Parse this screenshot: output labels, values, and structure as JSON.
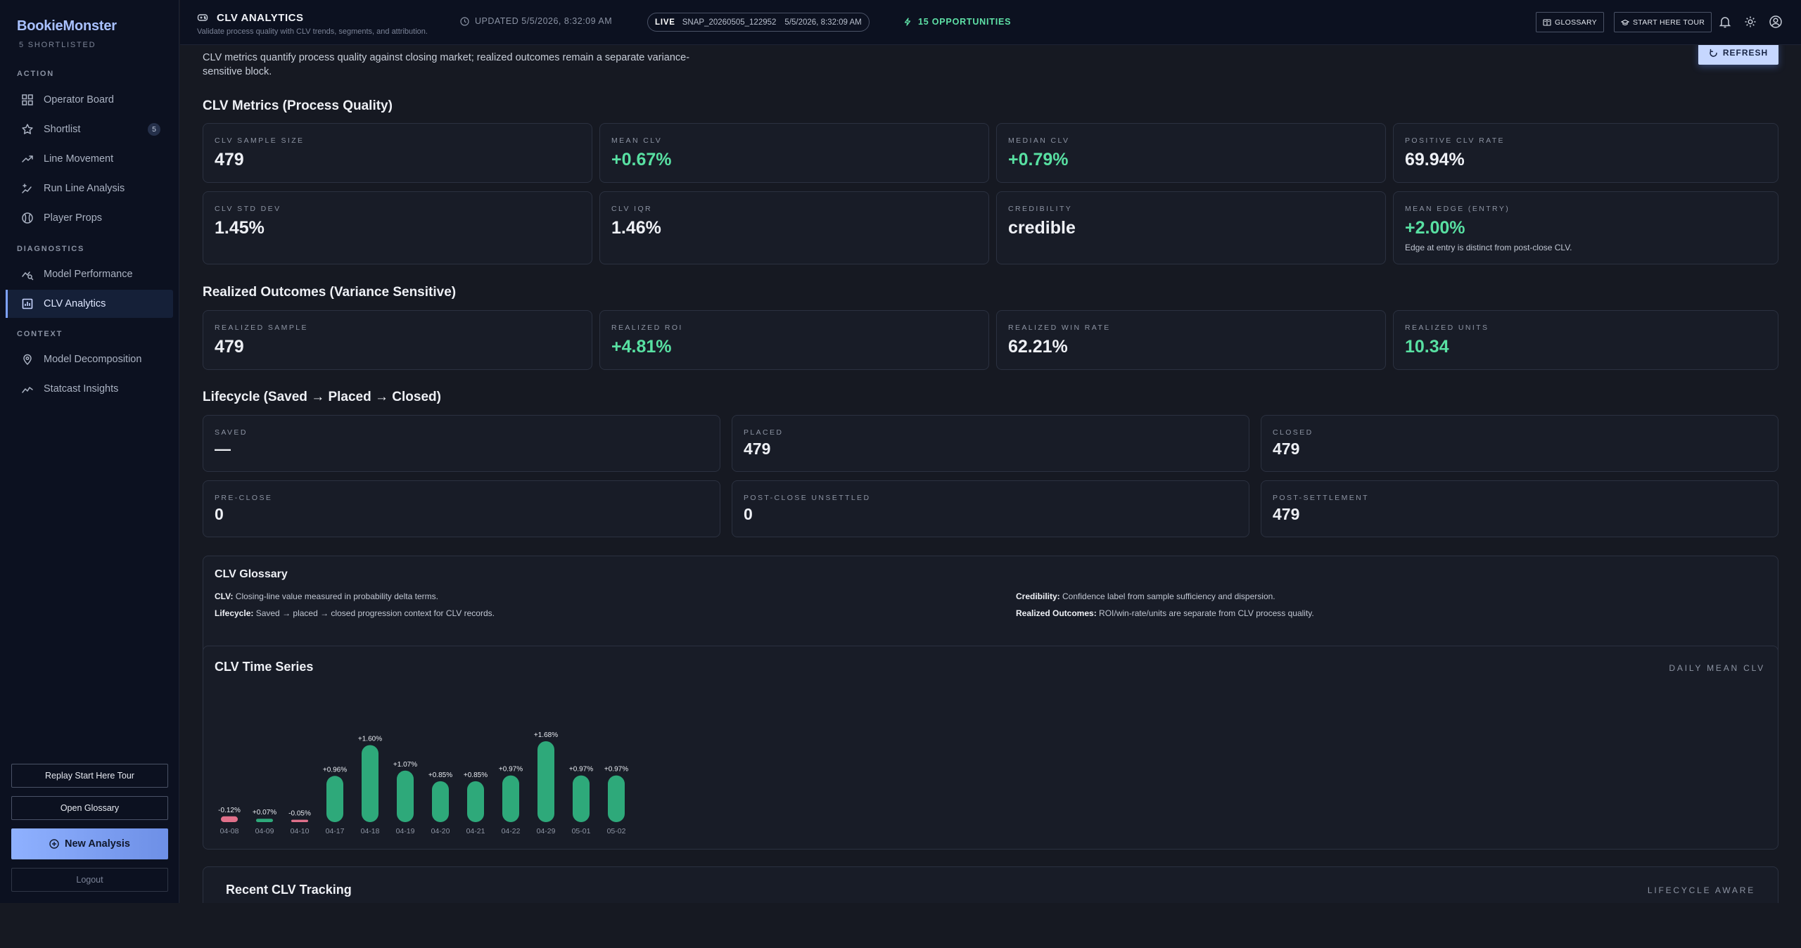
{
  "sidebar": {
    "brand": "BookieMonster",
    "shortlisted": "5 SHORTLISTED",
    "sections": {
      "action": "ACTION",
      "diagnostics": "DIAGNOSTICS",
      "context": "CONTEXT"
    },
    "items": [
      {
        "label": "Operator Board"
      },
      {
        "label": "Shortlist",
        "badge": "5"
      },
      {
        "label": "Line Movement"
      },
      {
        "label": "Run Line Analysis"
      },
      {
        "label": "Player Props"
      },
      {
        "label": "Model Performance"
      },
      {
        "label": "CLV Analytics"
      },
      {
        "label": "Model Decomposition"
      },
      {
        "label": "Statcast Insights"
      }
    ],
    "buttons": {
      "replay_tour": "Replay Start Here Tour",
      "open_glossary": "Open Glossary",
      "new_analysis": "New Analysis",
      "logout": "Logout"
    }
  },
  "header": {
    "title": "CLV ANALYTICS",
    "subtitle": "Validate process quality with CLV trends, segments, and attribution.",
    "updated": "UPDATED 5/5/2026, 8:32:09 AM",
    "live_label": "LIVE",
    "snapshot": "SNAP_20260505_122952",
    "snapshot_time": "5/5/2026, 8:32:09 AM",
    "opportunities": "15 OPPORTUNITIES",
    "glossary_btn": "GLOSSARY",
    "tour_btn": "START HERE TOUR"
  },
  "main": {
    "intro": "CLV metrics quantify process quality against closing market; realized outcomes remain a separate variance-sensitive block.",
    "refresh": "REFRESH",
    "clv_metrics_title": "CLV Metrics (Process Quality)",
    "clv_metrics": [
      {
        "label": "CLV SAMPLE SIZE",
        "value": "479"
      },
      {
        "label": "MEAN CLV",
        "value": "+0.67%"
      },
      {
        "label": "MEDIAN CLV",
        "value": "+0.79%"
      },
      {
        "label": "POSITIVE CLV RATE",
        "value": "69.94%"
      },
      {
        "label": "CLV STD DEV",
        "value": "1.45%"
      },
      {
        "label": "CLV IQR",
        "value": "1.46%"
      },
      {
        "label": "CREDIBILITY",
        "value": "credible"
      },
      {
        "label": "MEAN EDGE (ENTRY)",
        "value": "+2.00%",
        "note": "Edge at entry is distinct from post-close CLV."
      }
    ],
    "realized_title": "Realized Outcomes (Variance Sensitive)",
    "realized": [
      {
        "label": "REALIZED SAMPLE",
        "value": "479"
      },
      {
        "label": "REALIZED ROI",
        "value": "+4.81%"
      },
      {
        "label": "REALIZED WIN RATE",
        "value": "62.21%"
      },
      {
        "label": "REALIZED UNITS",
        "value": "10.34"
      }
    ],
    "lifecycle_title": "Lifecycle (Saved → Placed → Closed)",
    "lifecycle": [
      {
        "label": "SAVED",
        "value": "—"
      },
      {
        "label": "PLACED",
        "value": "479"
      },
      {
        "label": "CLOSED",
        "value": "479"
      },
      {
        "label": "PRE-CLOSE",
        "value": "0"
      },
      {
        "label": "POST-CLOSE UNSETTLED",
        "value": "0"
      },
      {
        "label": "POST-SETTLEMENT",
        "value": "479"
      }
    ],
    "glossary": {
      "title": "CLV Glossary",
      "items": [
        {
          "term": "CLV:",
          "text": "Closing-line value measured in probability delta terms."
        },
        {
          "term": "Credibility:",
          "text": "Confidence label from sample sufficiency and dispersion."
        },
        {
          "term": "Lifecycle:",
          "text": "Saved → placed → closed progression context for CLV records."
        },
        {
          "term": "Realized Outcomes:",
          "text": "ROI/win-rate/units are separate from CLV process quality."
        }
      ]
    },
    "time_series": {
      "title": "CLV Time Series",
      "subtitle": "DAILY MEAN CLV"
    },
    "recent": {
      "title": "Recent CLV Tracking",
      "subtitle": "LIFECYCLE AWARE"
    }
  },
  "colors": {
    "accent": "#8fb1ff",
    "positive": "#2ea97a",
    "negative": "#e0708a",
    "green_text": "#58e0a2"
  },
  "chart_data": {
    "type": "bar",
    "title": "CLV Time Series",
    "subtitle": "DAILY MEAN CLV",
    "categories": [
      "04-08",
      "04-09",
      "04-10",
      "04-17",
      "04-18",
      "04-19",
      "04-20",
      "04-21",
      "04-22",
      "04-29",
      "05-01",
      "05-02"
    ],
    "values": [
      -0.12,
      0.07,
      -0.05,
      0.96,
      1.6,
      1.07,
      0.85,
      0.85,
      0.97,
      1.68,
      0.97,
      0.97
    ],
    "labels": [
      "-0.12%",
      "+0.07%",
      "-0.05%",
      "+0.96%",
      "+1.60%",
      "+1.07%",
      "+0.85%",
      "+0.85%",
      "+0.97%",
      "+1.68%",
      "+0.97%",
      "+0.97%"
    ],
    "unit": "%"
  }
}
